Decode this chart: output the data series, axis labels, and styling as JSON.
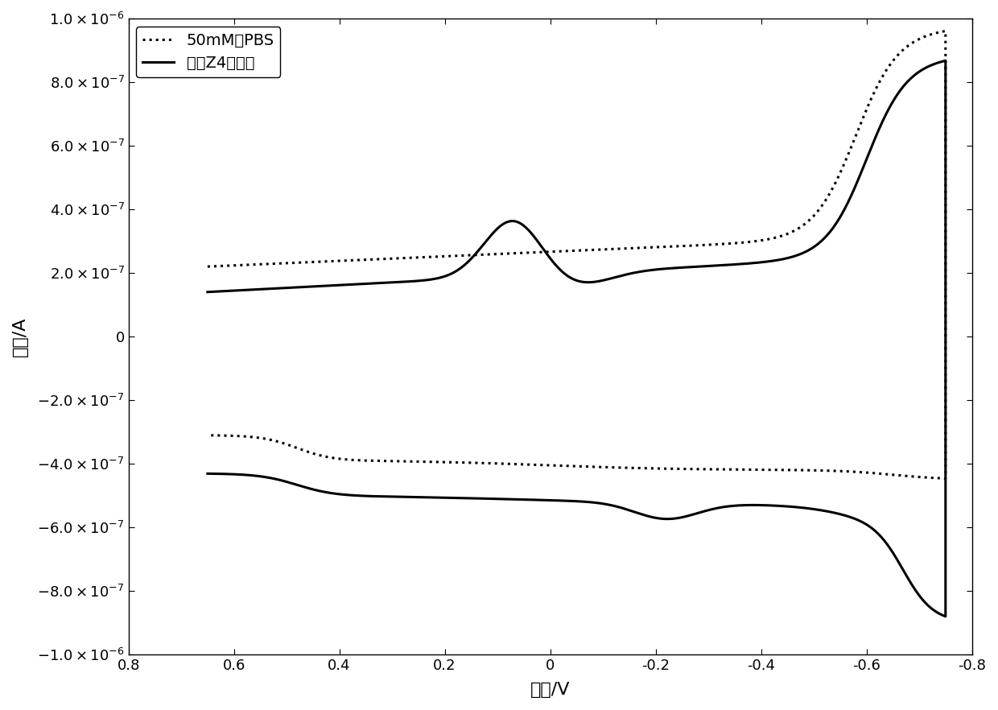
{
  "xlabel": "电压/V",
  "ylabel": "电流/A",
  "legend_pbs": "50mM的PBS",
  "legend_z4": "菌株Z4菌悬液",
  "xlim": [
    0.8,
    -0.8
  ],
  "ylim": [
    -1e-06,
    1e-06
  ],
  "xticks": [
    0.8,
    0.6,
    0.4,
    0.2,
    0.0,
    -0.2,
    -0.4,
    -0.6,
    -0.8
  ],
  "yticks": [
    -1e-06,
    -8e-07,
    -6e-07,
    -4e-07,
    -2e-07,
    0.0,
    2e-07,
    4e-07,
    6e-07,
    8e-07,
    1e-06
  ],
  "xtick_labels": [
    "0.8",
    "0.6",
    "0.4",
    "0.2",
    "0",
    "-0.2",
    "-0.4",
    "-0.6",
    "-0.8"
  ],
  "figsize": [
    12.4,
    8.82
  ],
  "dpi": 100
}
